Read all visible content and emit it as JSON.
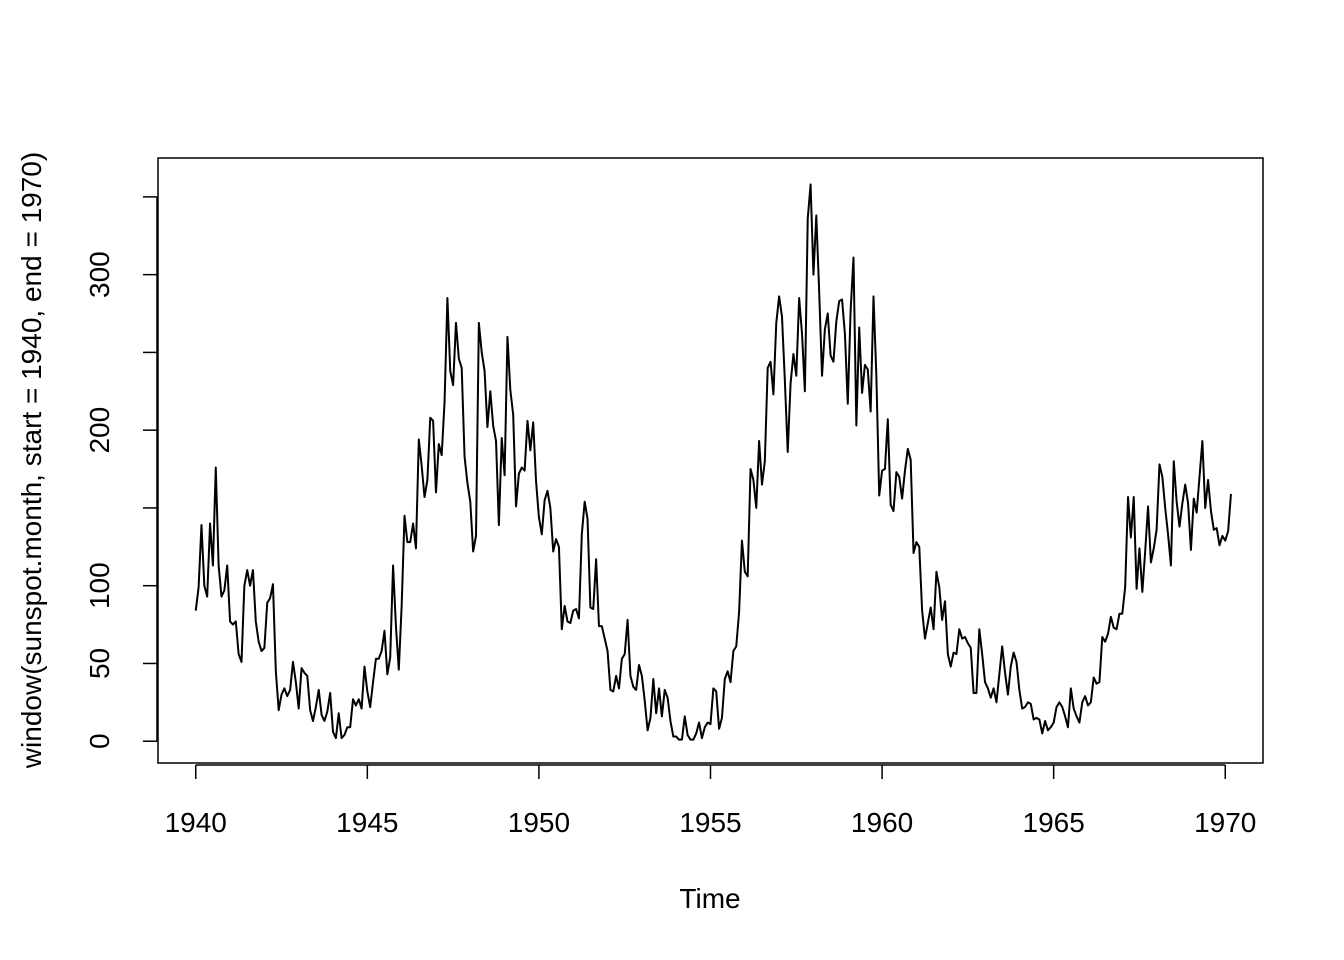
{
  "chart_data": {
    "type": "line",
    "xlabel": "Time",
    "ylabel": "window(sunspot.month, start = 1940, end = 1970)",
    "xlim": [
      1938.9,
      1971.1
    ],
    "ylim": [
      -14,
      375
    ],
    "x_ticks": [
      1940,
      1945,
      1950,
      1955,
      1960,
      1965,
      1970
    ],
    "x_tick_labels": [
      "1940",
      "1945",
      "1950",
      "1955",
      "1960",
      "1965",
      "1970"
    ],
    "y_ticks": [
      0,
      50,
      100,
      150,
      200,
      250,
      300,
      350
    ],
    "y_tick_labels": [
      "0",
      "50",
      "100",
      "",
      "200",
      "",
      "300",
      ""
    ],
    "line_color": "#000000",
    "series": [
      {
        "x_start": 1940,
        "x_step": 0.08333333,
        "values": [
          84,
          99,
          139,
          100,
          93,
          140,
          113,
          176,
          113,
          93,
          97,
          113,
          77,
          75,
          77,
          56,
          51,
          100,
          110,
          100,
          110,
          77,
          64,
          58,
          60,
          89,
          92,
          101,
          45,
          20,
          30,
          34,
          29,
          33,
          51,
          38,
          21,
          47,
          44,
          42,
          20,
          13,
          22,
          33,
          17,
          13,
          19,
          31,
          6,
          2,
          18,
          2,
          4,
          9,
          9,
          27,
          23,
          27,
          21,
          48,
          32,
          22,
          38,
          53,
          53,
          58,
          71,
          43,
          54,
          113,
          74,
          46,
          87,
          145,
          128,
          128,
          140,
          124,
          194,
          177,
          157,
          168,
          208,
          206,
          160,
          191,
          184,
          218,
          285,
          238,
          229,
          269,
          246,
          240,
          183,
          166,
          154,
          122,
          132,
          269,
          250,
          238,
          202,
          225,
          203,
          193,
          139,
          195,
          171,
          260,
          226,
          210,
          151,
          172,
          176,
          174,
          206,
          187,
          205,
          167,
          144,
          133,
          155,
          161,
          150,
          122,
          130,
          125,
          72,
          87,
          77,
          76,
          84,
          85,
          79,
          133,
          154,
          143,
          86,
          85,
          117,
          74,
          74,
          66,
          58,
          33,
          32,
          42,
          34,
          53,
          56,
          78,
          42,
          35,
          33,
          49,
          42,
          26,
          7,
          15,
          40,
          18,
          34,
          16,
          33,
          28,
          13,
          3,
          3,
          1,
          1,
          16,
          4,
          1,
          1,
          5,
          12,
          2,
          9,
          12,
          11,
          34,
          32,
          8,
          15,
          40,
          45,
          38,
          58,
          61,
          83,
          129,
          109,
          106,
          175,
          168,
          150,
          193,
          165,
          180,
          240,
          244,
          223,
          269,
          286,
          273,
          232,
          186,
          230,
          249,
          235,
          285,
          262,
          225,
          336,
          358,
          300,
          338,
          289,
          235,
          265,
          275,
          248,
          244,
          270,
          283,
          284,
          262,
          217,
          277,
          311,
          203,
          266,
          224,
          242,
          239,
          212,
          286,
          235,
          158,
          174,
          175,
          207,
          152,
          148,
          173,
          170,
          156,
          174,
          188,
          181,
          121,
          128,
          125,
          84,
          66,
          76,
          86,
          72,
          109,
          99,
          78,
          90,
          56,
          48,
          57,
          56,
          72,
          66,
          67,
          63,
          60,
          31,
          31,
          72,
          56,
          38,
          34,
          28,
          34,
          25,
          43,
          61,
          44,
          30,
          48,
          57,
          51,
          33,
          21,
          22,
          25,
          24,
          14,
          15,
          14,
          5,
          13,
          7,
          9,
          12,
          22,
          25,
          22,
          16,
          9,
          34,
          21,
          16,
          12,
          25,
          29,
          23,
          25,
          41,
          37,
          38,
          67,
          64,
          69,
          80,
          73,
          72,
          82,
          82,
          99,
          157,
          131,
          157,
          98,
          124,
          96,
          122,
          151,
          115,
          124,
          136,
          178,
          170,
          150,
          133,
          113,
          180,
          154,
          138,
          153,
          165,
          153,
          123,
          156,
          147,
          170,
          193,
          150,
          168,
          148,
          136,
          137,
          126,
          132,
          129,
          135,
          159
        ]
      }
    ]
  }
}
